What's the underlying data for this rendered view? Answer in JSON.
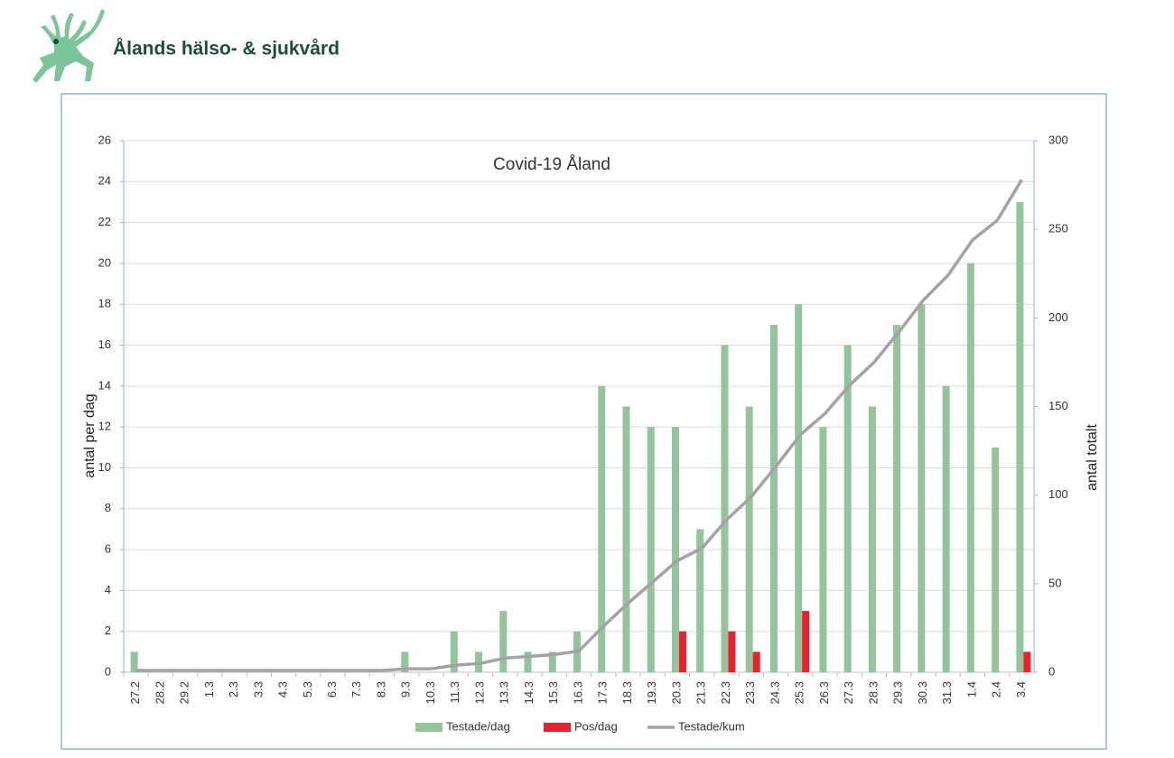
{
  "logo_text": "Ålands hälso- & sjukvård",
  "chart_data": {
    "type": "bar",
    "title": "Covid-19 Åland",
    "y_label": "antal per dag",
    "y2_label": "antal  totalt",
    "categories": [
      "27.2",
      "28.2",
      "29.2",
      "1.3",
      "2.3",
      "3.3",
      "4.3",
      "5.3",
      "6.3",
      "7.3",
      "8.3",
      "9.3",
      "10.3",
      "11.3",
      "12.3",
      "13.3",
      "14.3",
      "15.3",
      "16.3",
      "17.3",
      "18.3",
      "19.3",
      "20.3",
      "21.3",
      "22.3",
      "23.3",
      "24.3",
      "25.3",
      "26.3",
      "27.3",
      "28.3",
      "29.3",
      "30.3",
      "31.3",
      "1.4",
      "2.4",
      "3.4"
    ],
    "series": [
      {
        "name": "Testade/dag",
        "type": "bar",
        "color": "#93c49a",
        "values": [
          1,
          0,
          0,
          0,
          0,
          0,
          0,
          0,
          0,
          0,
          0,
          1,
          0,
          2,
          1,
          3,
          1,
          1,
          2,
          14,
          13,
          12,
          12,
          7,
          16,
          13,
          17,
          18,
          12,
          16,
          13,
          17,
          18,
          14,
          20,
          11,
          23
        ]
      },
      {
        "name": "Pos/dag",
        "type": "bar",
        "color": "#e8212f",
        "values": [
          0,
          0,
          0,
          0,
          0,
          0,
          0,
          0,
          0,
          0,
          0,
          0,
          0,
          0,
          0,
          0,
          0,
          0,
          0,
          0,
          0,
          0,
          2,
          0,
          2,
          1,
          0,
          3,
          0,
          0,
          0,
          0,
          0,
          0,
          0,
          0,
          1
        ]
      },
      {
        "name": "Testade/kum",
        "type": "line",
        "axis": "y2",
        "color": "#a3a3a3",
        "values": [
          1,
          1,
          1,
          1,
          1,
          1,
          1,
          1,
          1,
          1,
          1,
          2,
          2,
          4,
          5,
          8,
          9,
          10,
          12,
          26,
          39,
          51,
          63,
          70,
          86,
          99,
          116,
          134,
          146,
          162,
          175,
          192,
          210,
          224,
          244,
          255,
          278
        ]
      }
    ],
    "ylim": [
      0,
      26
    ],
    "yticks": [
      0,
      2,
      4,
      6,
      8,
      10,
      12,
      14,
      16,
      18,
      20,
      22,
      24,
      26
    ],
    "y2lim": [
      0,
      300
    ],
    "y2ticks": [
      0,
      50,
      100,
      150,
      200,
      250,
      300
    ],
    "grid": true,
    "legend": "bottom"
  }
}
